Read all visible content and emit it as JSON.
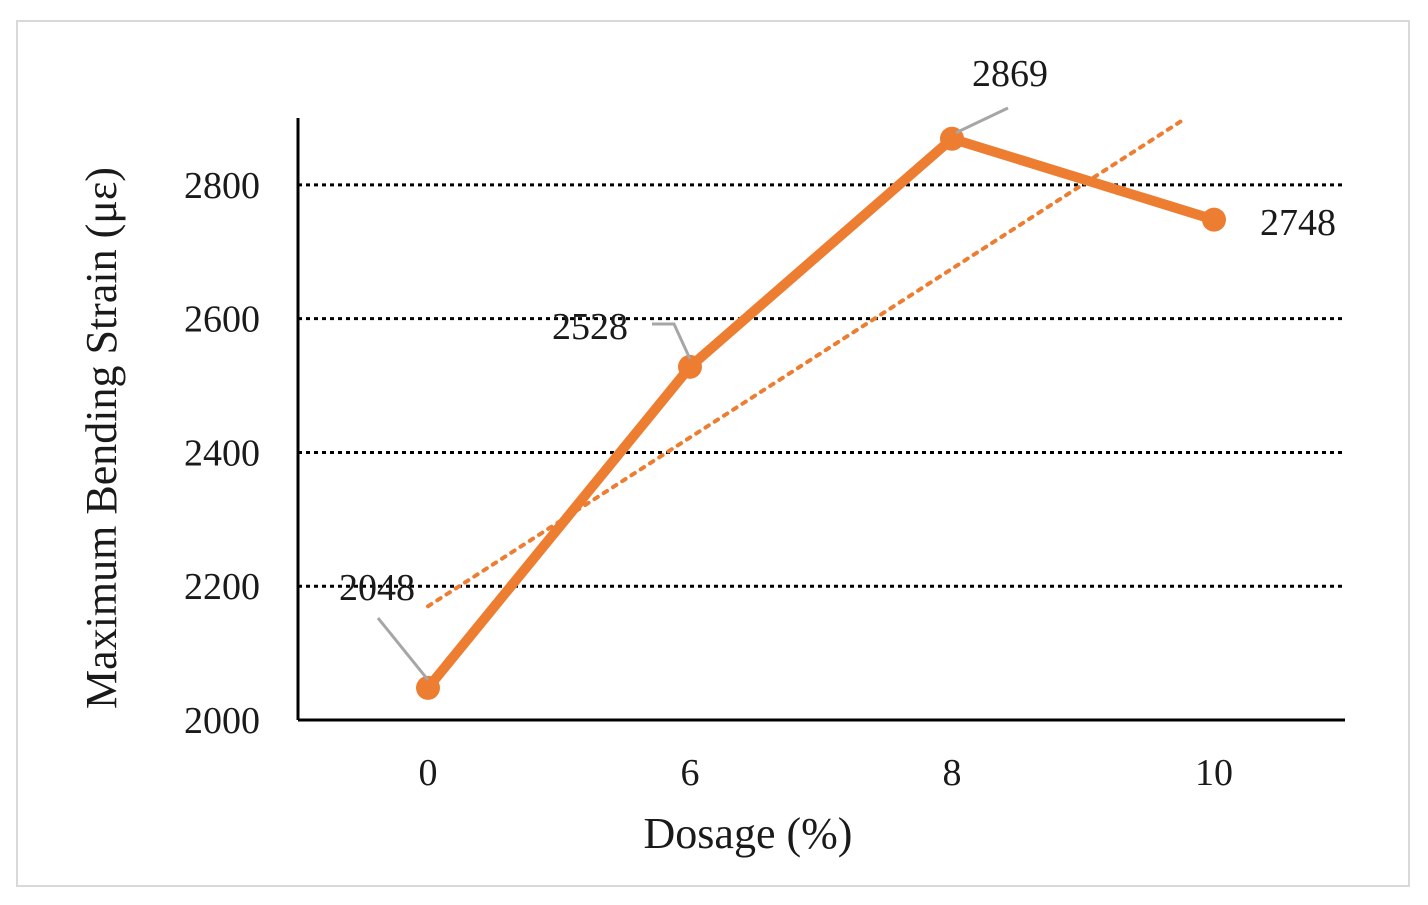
{
  "chart_data": {
    "type": "line",
    "categories": [
      "0",
      "6",
      "8",
      "10"
    ],
    "series": [
      {
        "values": [
          2048,
          2528,
          2869,
          2748
        ]
      }
    ],
    "trendline": {
      "type": "linear",
      "start": 2170,
      "end": 2900
    },
    "data_labels": [
      "2048",
      "2528",
      "2869",
      "2748"
    ],
    "xlabel": "Dosage (%)",
    "ylabel": "Maximum Bending Strain (με)",
    "ylim": [
      2000,
      2900
    ],
    "yticks": [
      2000,
      2200,
      2400,
      2600,
      2800
    ],
    "ytick_labels": [
      "2000",
      "2200",
      "2400",
      "2600",
      "2800"
    ],
    "grid": true,
    "grid_style": "dotted",
    "colors": {
      "series": "#ED7D31",
      "trendline": "#ED7D31",
      "grid": "#000000",
      "axis": "#000000",
      "leader": "#a6a6a6"
    }
  }
}
